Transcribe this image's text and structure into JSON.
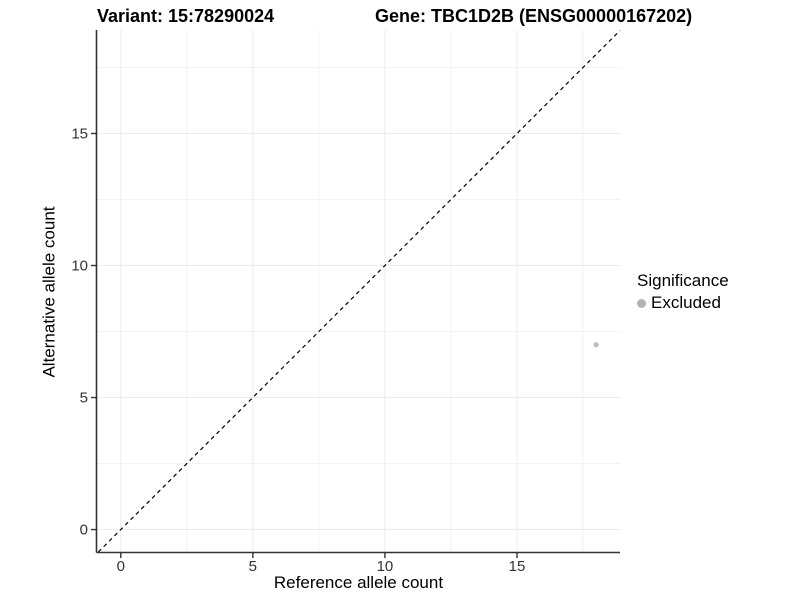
{
  "titles": {
    "variant": "Variant: 15:78290024",
    "gene": "Gene: TBC1D2B (ENSG00000167202)"
  },
  "chart_data": {
    "type": "scatter",
    "title_left": "Variant: 15:78290024",
    "title_right": "Gene: TBC1D2B (ENSG00000167202)",
    "xlabel": "Reference allele count",
    "ylabel": "Alternative allele count",
    "xlim": [
      -0.9,
      18.9
    ],
    "ylim": [
      -0.85,
      18.92
    ],
    "x_major_ticks": [
      0,
      5,
      10,
      15
    ],
    "y_major_ticks": [
      0,
      5,
      10,
      15
    ],
    "x_tick_labels": [
      "0",
      "5",
      "10",
      "15"
    ],
    "y_tick_labels": [
      "0",
      "5",
      "10",
      "15"
    ],
    "x_minor_gridlines": [
      2.5,
      7.5,
      12.5,
      17.5
    ],
    "y_minor_gridlines": [
      2.5,
      7.5,
      12.5,
      17.5
    ],
    "grid": true,
    "identity_line": {
      "style": "dashed",
      "slope": 1,
      "intercept": 0
    },
    "series": [
      {
        "name": "Excluded",
        "color": "#bdbdbd",
        "points": [
          {
            "x": 18,
            "y": 7
          }
        ]
      }
    ],
    "legend": {
      "title": "Significance",
      "position": "right",
      "entries": [
        {
          "label": "Excluded",
          "color": "#b3b3b3"
        }
      ]
    }
  },
  "colors": {
    "background": "#ffffff",
    "axis_line": "#333333",
    "tick_label": "#333333",
    "major_gridline": "#ececec",
    "minor_gridline": "#f2f2f2",
    "identity_line": "#000000",
    "title_text": "#000000"
  }
}
